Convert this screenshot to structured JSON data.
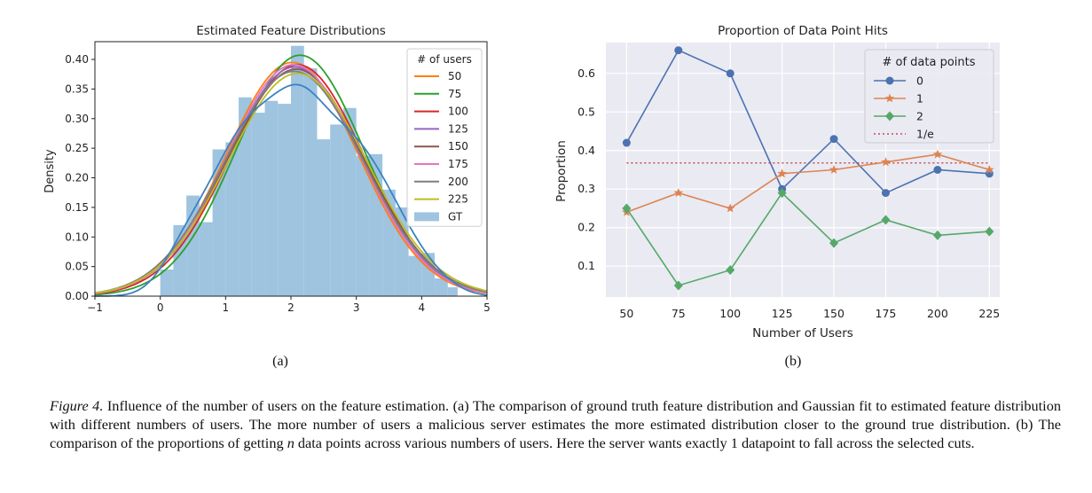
{
  "chart_data": [
    {
      "type": "histogram+kde",
      "panel_label": "(a)",
      "title": "Estimated Feature Distributions",
      "xlabel": "",
      "ylabel": "Density",
      "xlim": [
        -1,
        5
      ],
      "ylim": [
        0,
        0.43
      ],
      "xticks": [
        -1,
        0,
        1,
        2,
        3,
        4,
        5
      ],
      "yticks": [
        0.0,
        0.05,
        0.1,
        0.15,
        0.2,
        0.25,
        0.3,
        0.35,
        0.4
      ],
      "grid": false,
      "legend_title": "# of users",
      "legend_position": "top-right",
      "histogram": {
        "name": "GT",
        "color": "#9ec4e0",
        "bin_edges": [
          0,
          0.2,
          0.4,
          0.6,
          0.8,
          1.0,
          1.2,
          1.4,
          1.6,
          1.8,
          2.0,
          2.2,
          2.4,
          2.6,
          2.8,
          3.0,
          3.2,
          3.4,
          3.6,
          3.8,
          4.0,
          4.2,
          4.4,
          4.55
        ],
        "densities": [
          0.045,
          0.12,
          0.17,
          0.125,
          0.248,
          0.26,
          0.336,
          0.31,
          0.33,
          0.325,
          0.423,
          0.385,
          0.265,
          0.29,
          0.318,
          0.237,
          0.24,
          0.18,
          0.15,
          0.068,
          0.073,
          0.03,
          0.015
        ]
      },
      "gt_kde": {
        "name": "GT",
        "color": "#3b82c4"
      },
      "series": [
        {
          "name": "50",
          "color": "#ff7f0e",
          "mean": 2.02,
          "sd": 1.01
        },
        {
          "name": "75",
          "color": "#2ca02c",
          "mean": 2.14,
          "sd": 0.98
        },
        {
          "name": "100",
          "color": "#d62728",
          "mean": 2.1,
          "sd": 1.02
        },
        {
          "name": "125",
          "color": "#9467bd",
          "mean": 2.06,
          "sd": 1.03
        },
        {
          "name": "150",
          "color": "#8c564b",
          "mean": 2.08,
          "sd": 1.04
        },
        {
          "name": "175",
          "color": "#e377c2",
          "mean": 2.04,
          "sd": 1.02
        },
        {
          "name": "200",
          "color": "#7f7f7f",
          "mean": 2.05,
          "sd": 1.05
        },
        {
          "name": "225",
          "color": "#bcbd22",
          "mean": 2.1,
          "sd": 1.06
        }
      ]
    },
    {
      "type": "line",
      "panel_label": "(b)",
      "title": "Proportion of Data Point Hits",
      "xlabel": "Number of Users",
      "ylabel": "Proportion",
      "categories": [
        "50",
        "75",
        "100",
        "125",
        "150",
        "175",
        "200",
        "225"
      ],
      "x": [
        50,
        75,
        100,
        125,
        150,
        175,
        200,
        225
      ],
      "xlim": [
        40,
        230
      ],
      "ylim": [
        0.02,
        0.68
      ],
      "yticks": [
        0.1,
        0.2,
        0.3,
        0.4,
        0.5,
        0.6
      ],
      "grid": true,
      "legend_title": "# of data points",
      "legend_position": "top-right",
      "series": [
        {
          "name": "0",
          "color": "#4c72b0",
          "marker": "circle",
          "values": [
            0.42,
            0.66,
            0.6,
            0.3,
            0.43,
            0.29,
            0.35,
            0.34
          ]
        },
        {
          "name": "1",
          "color": "#dd8452",
          "marker": "star",
          "values": [
            0.24,
            0.29,
            0.25,
            0.34,
            0.35,
            0.37,
            0.39,
            0.35
          ]
        },
        {
          "name": "2",
          "color": "#55a868",
          "marker": "diamond",
          "values": [
            0.25,
            0.05,
            0.09,
            0.29,
            0.16,
            0.22,
            0.18,
            0.19
          ]
        }
      ],
      "reference_line": {
        "name": "1/e",
        "color": "#c44e52",
        "value": 0.3679,
        "style": "dotted"
      }
    }
  ],
  "caption": {
    "lead": "Figure 4.",
    "text": " Influence of the number of users on the feature estimation. (a) The comparison of ground truth feature distribution and Gaussian fit to estimated feature distribution with different numbers of users. The more number of users a malicious server estimates the more estimated distribution closer to the ground true distribution. (b) The comparison of the proportions of getting ",
    "var": "n",
    "tail": " data points across various numbers of users. Here the server wants exactly 1 datapoint to fall across the selected cuts."
  }
}
